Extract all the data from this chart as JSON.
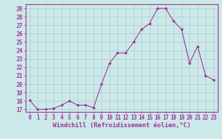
{
  "x": [
    0,
    1,
    2,
    3,
    4,
    5,
    6,
    7,
    8,
    9,
    10,
    11,
    12,
    13,
    14,
    15,
    16,
    17,
    18,
    19,
    20,
    21,
    22,
    23
  ],
  "y": [
    18.1,
    17.0,
    17.0,
    17.1,
    17.5,
    18.0,
    17.5,
    17.5,
    17.2,
    20.0,
    22.5,
    23.7,
    23.7,
    25.0,
    26.5,
    27.2,
    29.0,
    29.0,
    27.5,
    26.5,
    22.5,
    24.5,
    21.0,
    20.5
  ],
  "ylim_min": 16.7,
  "ylim_max": 29.5,
  "yticks": [
    17,
    18,
    19,
    20,
    21,
    22,
    23,
    24,
    25,
    26,
    27,
    28,
    29
  ],
  "xticks": [
    0,
    1,
    2,
    3,
    4,
    5,
    6,
    7,
    8,
    9,
    10,
    11,
    12,
    13,
    14,
    15,
    16,
    17,
    18,
    19,
    20,
    21,
    22,
    23
  ],
  "xlabel": "Windchill (Refroidissement éolien,°C)",
  "line_color": "#993399",
  "marker_color": "#993399",
  "bg_color": "#cce8e8",
  "grid_color": "#aacccc",
  "tick_fontsize": 5.5,
  "label_fontsize": 6.5
}
